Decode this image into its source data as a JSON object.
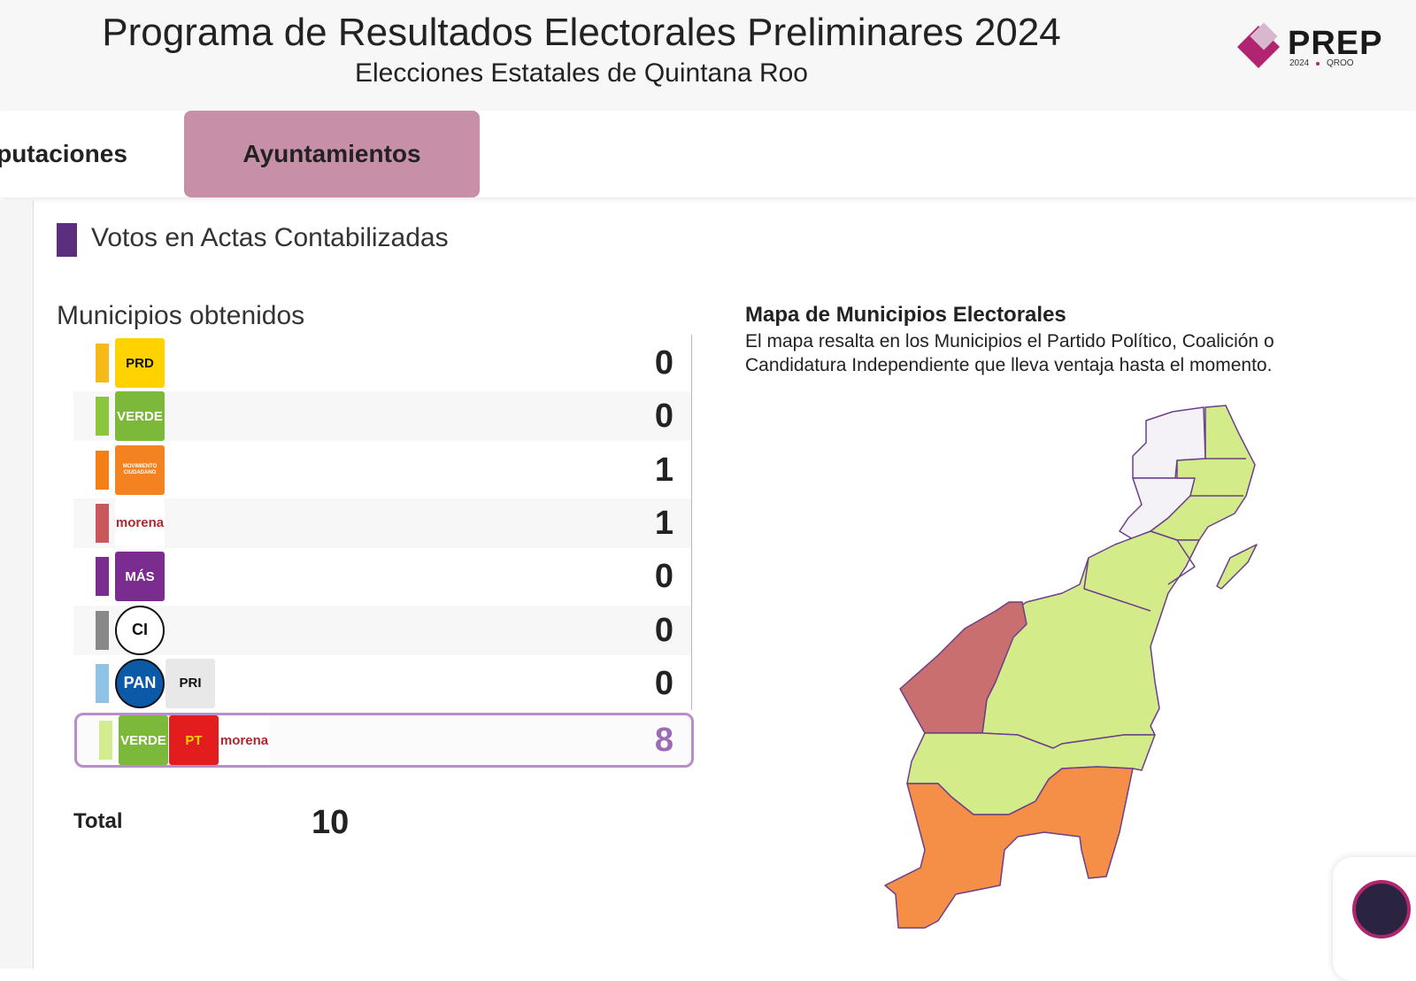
{
  "header": {
    "title": "Programa de Resultados Electorales Preliminares 2024",
    "subtitle": "Elecciones Estatales de Quintana Roo",
    "logo": {
      "text": "PREP",
      "year": "2024",
      "state": "QROO"
    }
  },
  "tabs": [
    "putaciones",
    "Ayuntamientos"
  ],
  "section_title": "Votos en Actas Contabilizadas",
  "municipios": {
    "title": "Municipios obtenidos",
    "rows": [
      {
        "color": "#f6b91a",
        "logos": [
          {
            "text": "PRD",
            "bg": "#ffd200",
            "fg": "#111"
          }
        ],
        "count": "0"
      },
      {
        "color": "#8cc63f",
        "logos": [
          {
            "text": "VERDE",
            "bg": "#7cb83a",
            "fg": "#fff"
          }
        ],
        "count": "0"
      },
      {
        "color": "#f57f17",
        "logos": [
          {
            "text": "MOVIMIENTO CIUDADANO",
            "bg": "#f58220",
            "fg": "#fff"
          }
        ],
        "count": "1"
      },
      {
        "color": "#c9585d",
        "logos": [
          {
            "text": "morena",
            "bg": "#ffffff",
            "fg": "#b0282f"
          }
        ],
        "count": "1"
      },
      {
        "color": "#7b2c8f",
        "logos": [
          {
            "text": "MÁS",
            "bg": "#7b2c8f",
            "fg": "#fff"
          }
        ],
        "count": "0"
      },
      {
        "color": "#888888",
        "logos": [
          {
            "text": "CI",
            "bg": "#ffffff",
            "fg": "#111",
            "shape": "circle"
          }
        ],
        "count": "0"
      },
      {
        "color": "#8ec3e6",
        "logos": [
          {
            "text": "PAN",
            "bg": "#0b5aa8",
            "fg": "#fff",
            "shape": "circle"
          },
          {
            "text": "PRI",
            "bg": "#e8e8e8",
            "fg": "#111"
          }
        ],
        "count": "0"
      },
      {
        "color": "#d4eb8e",
        "logos": [
          {
            "text": "VERDE",
            "bg": "#7cb83a",
            "fg": "#fff"
          },
          {
            "text": "PT",
            "bg": "#e31d1d",
            "fg": "#ffd200"
          },
          {
            "text": "morena",
            "bg": "#ffffff",
            "fg": "#b0282f"
          }
        ],
        "count": "8"
      }
    ],
    "total_label": "Total",
    "total": "10"
  },
  "map": {
    "title": "Mapa de Municipios Electorales",
    "description": "El mapa resalta en los Municipios el Partido Político, Coalición o Candidatura Independiente que lleva ventaja hasta el momento."
  }
}
